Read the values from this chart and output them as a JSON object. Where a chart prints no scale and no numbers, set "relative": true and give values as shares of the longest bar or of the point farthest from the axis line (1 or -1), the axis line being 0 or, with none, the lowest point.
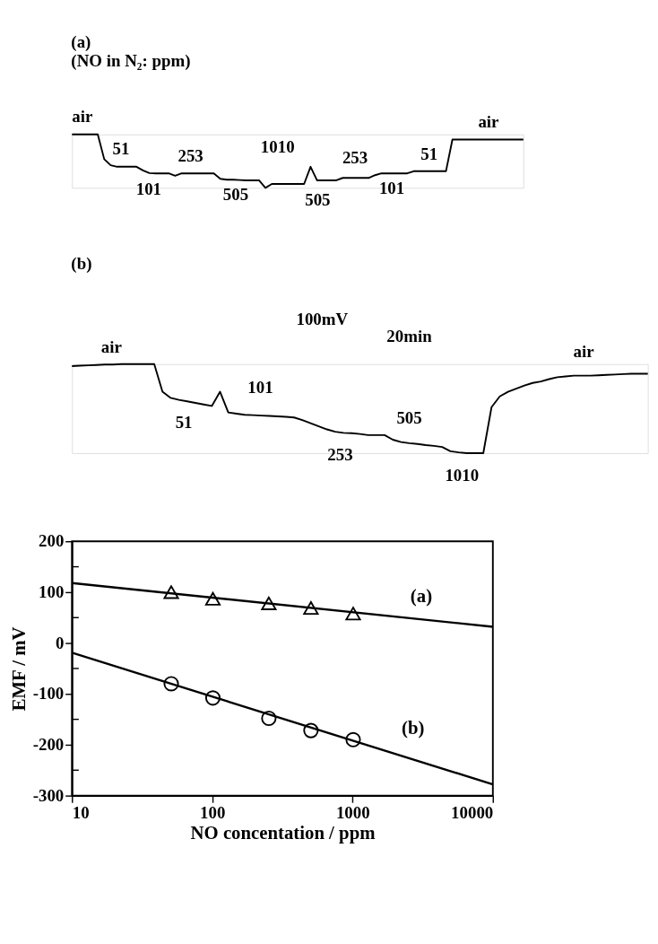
{
  "chart_data": [
    {
      "type": "line",
      "relative": true,
      "title": "(a)",
      "subtitle": "(NO in N₂: ppm)",
      "categories": [
        null,
        null,
        null,
        null,
        null,
        null,
        null,
        null,
        null,
        null,
        null,
        null,
        null,
        null,
        null,
        null,
        null,
        null,
        null,
        null,
        null,
        null,
        null,
        null,
        null,
        null,
        null,
        null,
        null,
        null,
        null,
        null,
        null,
        null,
        null,
        null,
        null,
        null,
        null,
        null,
        null,
        null,
        null,
        null,
        null,
        null,
        null,
        null,
        null,
        null,
        null,
        null,
        null,
        null,
        null,
        null,
        null,
        null,
        null,
        null,
        null,
        null,
        null,
        null,
        null,
        null,
        null,
        null,
        null,
        null,
        null
      ],
      "series": [
        {
          "color": "#000000",
          "values": [
            1,
            1,
            1,
            1,
            1,
            0.537,
            0.424,
            0.395,
            0.395,
            0.395,
            0.395,
            0.328,
            0.277,
            0.271,
            0.271,
            0.271,
            0.226,
            0.271,
            0.271,
            0.271,
            0.271,
            0.271,
            0.271,
            0.169,
            0.153,
            0.153,
            0.147,
            0.141,
            0.141,
            0.141,
            0,
            0.073,
            0.073,
            0.073,
            0.073,
            0.073,
            0.073,
            0.395,
            0.141,
            0.141,
            0.141,
            0.141,
            0.186,
            0.186,
            0.186,
            0.186,
            0.186,
            0.237,
            0.271,
            0.271,
            0.271,
            0.271,
            0.271,
            0.311,
            0.311,
            0.311,
            0.311,
            0.311,
            0.311,
            0.904,
            0.904,
            0.904,
            0.904,
            0.904,
            0.904,
            0.904,
            0.904,
            0.904,
            0.904,
            0.904,
            0.904
          ]
        }
      ],
      "annotations": [
        "air",
        "51",
        "101",
        "253",
        "505",
        "1010",
        "505",
        "253",
        "101",
        "51",
        "air"
      ]
    },
    {
      "type": "line",
      "relative": true,
      "title": "(b)",
      "categories": [
        null,
        null,
        null,
        null,
        null,
        null,
        null,
        null,
        null,
        null,
        null,
        null,
        null,
        null,
        null,
        null,
        null,
        null,
        null,
        null,
        null,
        null,
        null,
        null,
        null,
        null,
        null,
        null,
        null,
        null,
        null,
        null,
        null,
        null,
        null,
        null,
        null,
        null,
        null,
        null,
        null,
        null,
        null,
        null,
        null,
        null,
        null,
        null,
        null,
        null,
        null,
        null,
        null,
        null,
        null,
        null,
        null,
        null,
        null,
        null,
        null,
        null,
        null,
        null,
        null,
        null,
        null,
        null,
        null,
        null,
        null
      ],
      "series": [
        {
          "color": "#000000",
          "values": [
            0.978,
            0.983,
            0.987,
            0.991,
            0.996,
            0.996,
            1,
            1,
            1,
            1,
            1,
            0.69,
            0.621,
            0.599,
            0.582,
            0.565,
            0.547,
            0.53,
            0.69,
            0.457,
            0.444,
            0.431,
            0.427,
            0.422,
            0.418,
            0.414,
            0.409,
            0.401,
            0.371,
            0.336,
            0.302,
            0.267,
            0.241,
            0.228,
            0.224,
            0.216,
            0.203,
            0.203,
            0.203,
            0.151,
            0.125,
            0.112,
            0.103,
            0.091,
            0.082,
            0.069,
            0.022,
            0.009,
            0,
            0,
            0,
            0.517,
            0.638,
            0.69,
            0.724,
            0.759,
            0.789,
            0.806,
            0.832,
            0.853,
            0.862,
            0.871,
            0.871,
            0.871,
            0.875,
            0.879,
            0.884,
            0.888,
            0.892,
            0.892,
            0.892
          ]
        }
      ],
      "annotations": [
        "air",
        "51",
        "101",
        "253",
        "505",
        "1010",
        "air",
        "100mV",
        "20min"
      ]
    },
    {
      "type": "scatter",
      "xlabel": "NO concentation / ppm",
      "ylabel": "EMF / mV",
      "log": "x",
      "grid": false,
      "xlim": [
        10,
        10000
      ],
      "xticks": [
        10,
        100,
        1000,
        10000
      ],
      "ylim": [
        -300,
        200
      ],
      "yticks": [
        -300,
        {
          "value": -250,
          "label": null
        },
        -200,
        {
          "value": -150,
          "label": null
        },
        -100,
        {
          "value": -50,
          "label": null
        },
        0,
        {
          "value": 50,
          "label": null
        },
        100,
        {
          "value": 150,
          "label": null
        },
        200
      ],
      "series": [
        {
          "type": "scatter",
          "marker": "triangle",
          "color": "#000000",
          "x": [
            51,
            101,
            253,
            505,
            1010
          ],
          "values": [
            100,
            87,
            78,
            69,
            58
          ]
        },
        {
          "type": "scatter",
          "marker": "circle",
          "color": "#000000",
          "x": [
            51,
            101,
            253,
            505,
            1010
          ],
          "values": [
            -80,
            -108,
            -148,
            -172,
            -190
          ]
        },
        {
          "type": "line",
          "marker": "none",
          "color": "#000000",
          "x": [
            10,
            10000
          ],
          "values": [
            118,
            32
          ]
        },
        {
          "type": "line",
          "marker": "none",
          "color": "#000000",
          "x": [
            10,
            10000
          ],
          "values": [
            -19,
            -278
          ]
        }
      ],
      "annotations": [
        "(a)",
        "(b)"
      ]
    }
  ]
}
